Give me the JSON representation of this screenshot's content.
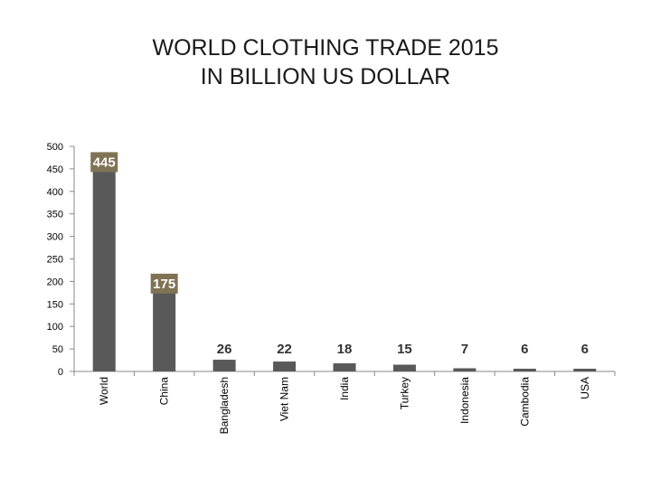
{
  "title_line1": "WORLD CLOTHING TRADE 2015",
  "title_line2": "IN BILLION US DOLLAR",
  "chart_data": {
    "type": "bar",
    "title": "WORLD CLOTHING TRADE 2015 IN BILLION US DOLLAR",
    "categories": [
      "World",
      "China",
      "Bangladesh",
      "Viet Nam",
      "India",
      "Turkey",
      "Indonesia",
      "Cambodia",
      "USA"
    ],
    "values": [
      445,
      175,
      26,
      22,
      18,
      15,
      7,
      6,
      6
    ],
    "yticks": [
      0,
      50,
      100,
      150,
      200,
      250,
      300,
      350,
      400,
      450,
      500
    ],
    "ylim": [
      0,
      500
    ],
    "xlabel": "",
    "ylabel": "",
    "grid": false,
    "legend": "none",
    "colors": {
      "bar": "#595959",
      "label_box": "#7f7355",
      "label_box_text": "#ffffff",
      "label_plain_text": "#333333"
    }
  }
}
